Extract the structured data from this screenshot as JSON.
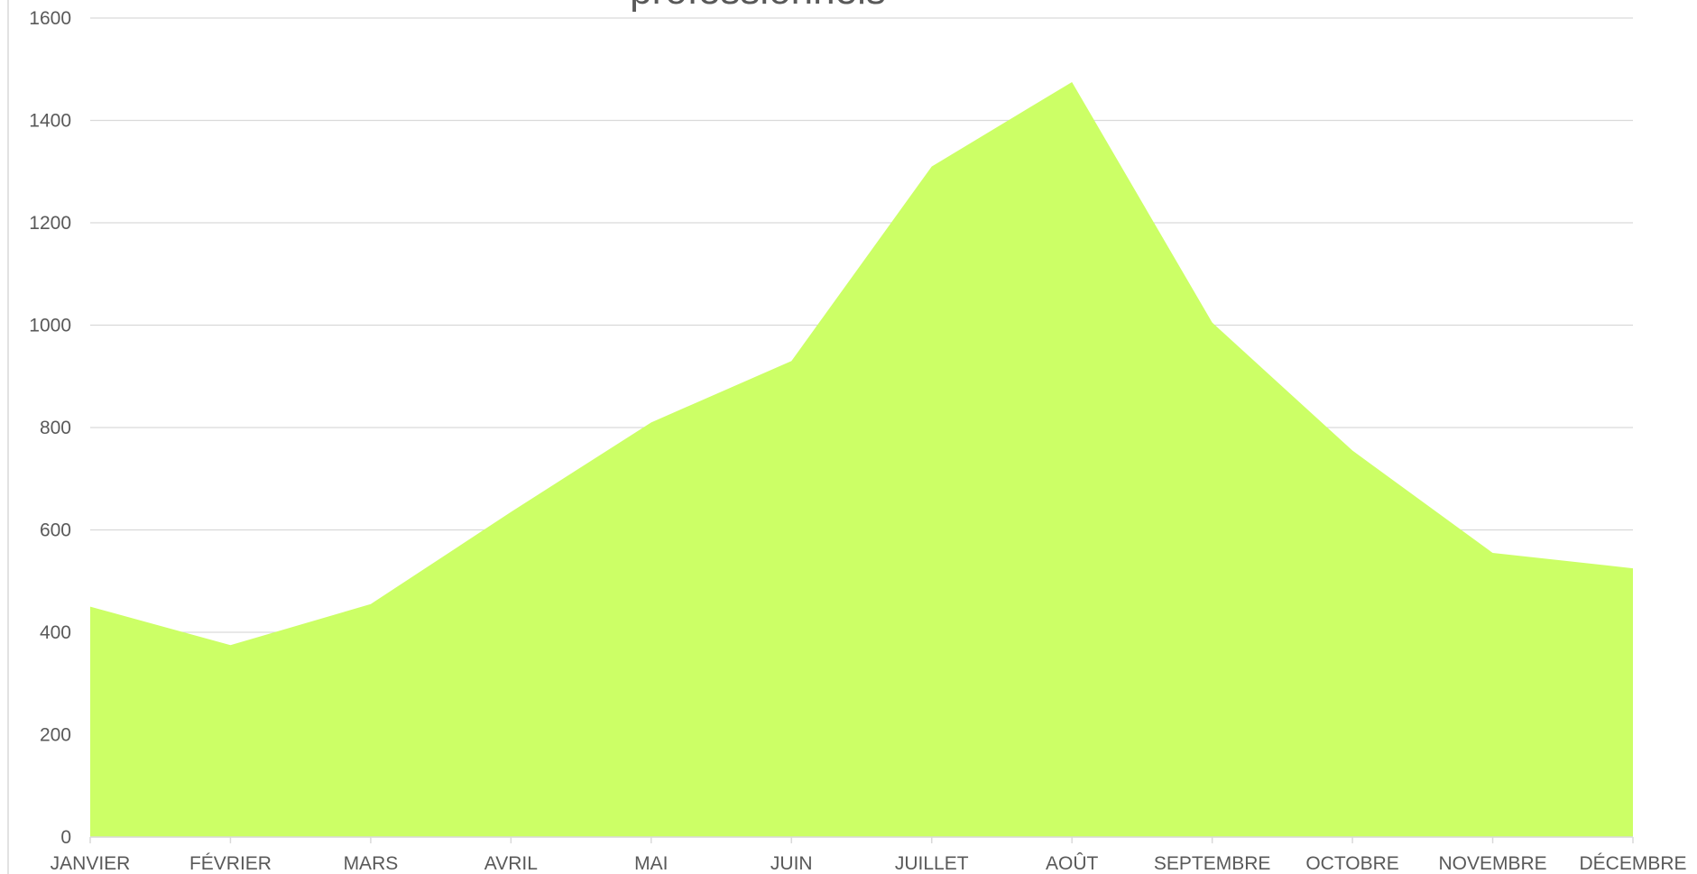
{
  "chart_data": {
    "type": "area",
    "title": "professionnels",
    "categories": [
      "JANVIER",
      "FÉVRIER",
      "MARS",
      "AVRIL",
      "MAI",
      "JUIN",
      "JUILLET",
      "AOÛT",
      "SEPTEMBRE",
      "OCTOBRE",
      "NOVEMBRE",
      "DÉCEMBRE"
    ],
    "values": [
      450,
      375,
      455,
      635,
      810,
      930,
      1310,
      1475,
      1005,
      755,
      555,
      525
    ],
    "color": "#ccff66",
    "ylim": [
      0,
      1600
    ],
    "yticks": [
      0,
      200,
      400,
      600,
      800,
      1000,
      1200,
      1400,
      1600
    ],
    "grid": true
  }
}
